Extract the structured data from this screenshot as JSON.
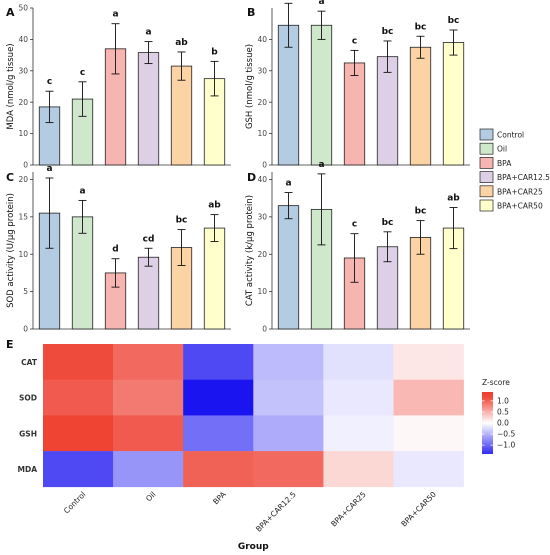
{
  "chart_data": [
    {
      "panel": "A",
      "type": "bar",
      "ylabel": "MDA (nmol/g tissue)",
      "ylim": [
        0,
        50
      ],
      "yticks": [
        0,
        10,
        20,
        30,
        40,
        50
      ],
      "categories": [
        "Control",
        "Oil",
        "BPA",
        "BPA+CAR12.5",
        "BPA+CAR25",
        "BPA+CAR50"
      ],
      "values": [
        18.5,
        21,
        37,
        35.8,
        31.5,
        27.5
      ],
      "errors": [
        5,
        5.5,
        8,
        3.5,
        4.5,
        5.5
      ],
      "letters": [
        "c",
        "c",
        "a",
        "a",
        "ab",
        "b"
      ]
    },
    {
      "panel": "B",
      "type": "bar",
      "ylabel": "GSH (nmol/g tissue)",
      "ylim": [
        0,
        50
      ],
      "yticks": [
        0,
        10,
        20,
        30,
        40
      ],
      "categories": [
        "Control",
        "Oil",
        "BPA",
        "BPA+CAR12.5",
        "BPA+CAR25",
        "BPA+CAR50"
      ],
      "values": [
        44.5,
        44.5,
        32.5,
        34.5,
        37.5,
        39
      ],
      "errors": [
        7,
        4.5,
        4,
        5,
        3.5,
        4
      ],
      "letters": [
        "a",
        "a",
        "c",
        "bc",
        "bc",
        "bc"
      ]
    },
    {
      "panel": "C",
      "type": "bar",
      "ylabel": "SOD activity (U/μg protein)",
      "ylim": [
        0,
        21
      ],
      "yticks": [
        0,
        5,
        10,
        15,
        20
      ],
      "categories": [
        "Control",
        "Oil",
        "BPA",
        "BPA+CAR12.5",
        "BPA+CAR25",
        "BPA+CAR50"
      ],
      "values": [
        15.5,
        15,
        7.5,
        9.6,
        10.9,
        13.5
      ],
      "errors": [
        4.7,
        2.2,
        1.9,
        1.2,
        2.4,
        1.8
      ],
      "letters": [
        "a",
        "a",
        "d",
        "cd",
        "bc",
        "ab"
      ]
    },
    {
      "panel": "D",
      "type": "bar",
      "ylabel": "CAT activity (k/μg protein)",
      "ylim": [
        0,
        42
      ],
      "yticks": [
        0,
        10,
        20,
        30,
        40
      ],
      "categories": [
        "Control",
        "Oil",
        "BPA",
        "BPA+CAR12.5",
        "BPA+CAR25",
        "BPA+CAR50"
      ],
      "values": [
        33,
        32,
        19,
        22,
        24.5,
        27
      ],
      "errors": [
        3.5,
        9.5,
        6.5,
        4,
        4.5,
        5.5
      ],
      "letters": [
        "a",
        "a",
        "c",
        "bc",
        "bc",
        "ab"
      ]
    },
    {
      "panel": "E",
      "type": "heatmap",
      "xlabel": "Group",
      "columns": [
        "Control",
        "Oil",
        "BPA",
        "BPA+CAR12.5",
        "BPA+CAR25",
        "BPA+CAR50"
      ],
      "rows": [
        "CAT",
        "SOD",
        "GSH",
        "MDA"
      ],
      "values": [
        [
          1.15,
          0.95,
          -1.2,
          -0.45,
          -0.2,
          0.15
        ],
        [
          1.05,
          0.85,
          -1.6,
          -0.4,
          -0.15,
          0.45
        ],
        [
          1.2,
          1.05,
          -0.95,
          -0.55,
          -0.1,
          0.05
        ],
        [
          -1.2,
          -0.7,
          1.0,
          0.95,
          0.25,
          -0.15
        ]
      ],
      "legend_title": "Z-score",
      "legend_ticks": [
        1.0,
        0.5,
        0.0,
        -0.5,
        -1.0
      ],
      "legend_tick_labels": [
        "1.0",
        "0.5",
        "0.0",
        "−0.5",
        "−1.0"
      ]
    }
  ],
  "legend": {
    "entries": [
      "Control",
      "Oil",
      "BPA",
      "BPA+CAR12.5",
      "BPA+CAR25",
      "BPA+CAR50"
    ],
    "colors": [
      "#b3cce1",
      "#cfe8cc",
      "#f7b5b1",
      "#ddd0e6",
      "#fbd3a5",
      "#ffffcc"
    ]
  },
  "colors": {
    "heat_low": "#1a14f0",
    "heat_mid": "#ffffff",
    "heat_high": "#ee3b2c",
    "bar_outline": "#222222"
  }
}
